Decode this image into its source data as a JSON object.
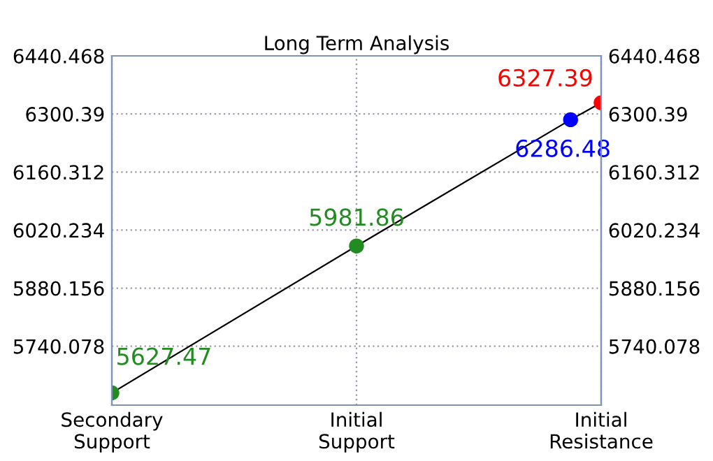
{
  "chart_data": {
    "type": "line",
    "title": "Long Term Analysis",
    "categories": [
      "Secondary\nSupport",
      null,
      null,
      null,
      null,
      null,
      null,
      null,
      "Initial\nSupport",
      null,
      null,
      null,
      null,
      null,
      null,
      null,
      "Initial\nResistance"
    ],
    "ylim": [
      5598,
      6440.468
    ],
    "yticks": [
      5740.078,
      5880.156,
      6020.234,
      6160.312,
      6300.39,
      6440.468
    ],
    "y2lim": [
      5598,
      6440.468
    ],
    "y2ticks": [
      5740.078,
      5880.156,
      6020.234,
      6160.312,
      6300.39,
      6440.468
    ],
    "grid": true,
    "marker": "circle",
    "line_style": "solid",
    "series": [
      {
        "color": "#000000",
        "colors": [
          "#228b22",
          null,
          null,
          null,
          null,
          null,
          null,
          null,
          "#228b22",
          null,
          null,
          null,
          null,
          null,
          null,
          "#0000ff",
          "#ff0000"
        ],
        "values": [
          5627.47,
          null,
          null,
          null,
          null,
          null,
          null,
          null,
          5981.86,
          null,
          null,
          null,
          null,
          null,
          null,
          6286.48,
          6327.39
        ],
        "value_labels": [
          "5627.47",
          null,
          null,
          null,
          null,
          null,
          null,
          null,
          "5981.86",
          null,
          null,
          null,
          null,
          null,
          null,
          "6286.48",
          "6327.39"
        ]
      }
    ]
  }
}
